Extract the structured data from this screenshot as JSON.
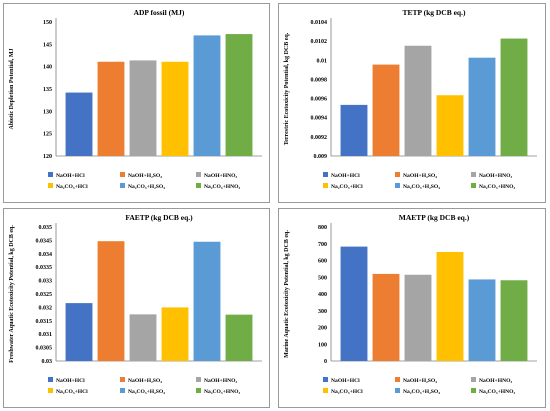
{
  "series_colors": [
    "#4472C4",
    "#ED7D31",
    "#A5A5A5",
    "#FFC000",
    "#5B9BD5",
    "#70AD47"
  ],
  "chart_data": [
    {
      "type": "bar",
      "title": "ADP fossil (MJ)",
      "ylabel": "Abiotic Depletion Potential, MJ",
      "categories": [
        "NaOH+HCl",
        "NaOH+H2SO4",
        "NaOH+HNO3",
        "Na2CO3+HCl",
        "Na2CO3+H2SO4",
        "Na2CO3+HNO3"
      ],
      "legend_labels": [
        "NaOH+HCl",
        "NaOH+H₂SO₄",
        "NaOH+HNO₃",
        "Na₂CO₃+HCl",
        "Na₂CO₃+H₂SO₄",
        "Na₂CO₃+HNO₃"
      ],
      "values": [
        134.2,
        141.1,
        141.4,
        141.1,
        147.0,
        147.3
      ],
      "ylim": [
        120,
        150
      ],
      "yticks": [
        "120",
        "125",
        "130",
        "135",
        "140",
        "145",
        "150"
      ]
    },
    {
      "type": "bar",
      "title": "TETP (kg DCB eq.)",
      "ylabel": "Terrestric Ecotoxicity Potential, kg DCB eq.",
      "categories": [
        "NaOH+HCl",
        "NaOH+H2SO4",
        "NaOH+HNO3",
        "Na2CO3+HCl",
        "Na2CO3+H2SO4",
        "Na2CO3+HNO3"
      ],
      "legend_labels": [
        "NaOH+HCl",
        "NaOH+H₂SO₄",
        "NaOH+HNO₃",
        "Na₂CO₃+HCl",
        "Na₂CO₃+H₂SO₄",
        "Na₂CO₃+HNO₃"
      ],
      "values": [
        0.009534,
        0.009955,
        0.010152,
        0.009635,
        0.010027,
        0.010227
      ],
      "ylim": [
        0.009,
        0.0104
      ],
      "yticks": [
        "0.009",
        "0.0092",
        "0.0094",
        "0.0096",
        "0.0098",
        "0.01",
        "0.0102",
        "0.0104"
      ]
    },
    {
      "type": "bar",
      "title": "FAETP (kg DCB eq.)",
      "ylabel": "Freshwater Aquatic Ecotoxicity Potential, kg DCB eq.",
      "categories": [
        "NaOH+HCl",
        "NaOH+H2SO4",
        "NaOH+HNO3",
        "Na2CO3+HCl",
        "Na2CO3+H2SO4",
        "Na2CO3+HNO3"
      ],
      "legend_labels": [
        "NaOH+HCl",
        "NaOH+H₂SO₄",
        "NaOH+HNO₃",
        "Na₂CO₃+HCl",
        "Na₂CO₃+H₂SO₄",
        "Na₂CO₃+HNO₃"
      ],
      "values": [
        0.03216,
        0.03447,
        0.03174,
        0.032,
        0.03445,
        0.03173
      ],
      "ylim": [
        0.03,
        0.035
      ],
      "yticks": [
        "0.03",
        "0.0305",
        "0.031",
        "0.0315",
        "0.032",
        "0.0325",
        "0.033",
        "0.0335",
        "0.034",
        "0.0345",
        "0.035"
      ]
    },
    {
      "type": "bar",
      "title": "MAETP (kg DCB eq.)",
      "ylabel": "Marine Aquatic Ecotoxicity Potential, kg DCB eq.",
      "categories": [
        "NaOH+HCl",
        "NaOH+H2SO4",
        "NaOH+HNO3",
        "Na2CO3+HCl",
        "Na2CO3+H2SO4",
        "Na2CO3+HNO3"
      ],
      "legend_labels": [
        "NaOH+HCl",
        "NaOH+H₂SO₄",
        "NaOH+HNO₃",
        "Na₂CO₃+HCl",
        "Na₂CO₃+H₂SO₄",
        "Na₂CO₃+HNO₃"
      ],
      "values": [
        683,
        520,
        515,
        651,
        487,
        482
      ],
      "ylim": [
        0,
        800
      ],
      "yticks": [
        "0",
        "100",
        "200",
        "300",
        "400",
        "500",
        "600",
        "700",
        "800"
      ]
    }
  ]
}
